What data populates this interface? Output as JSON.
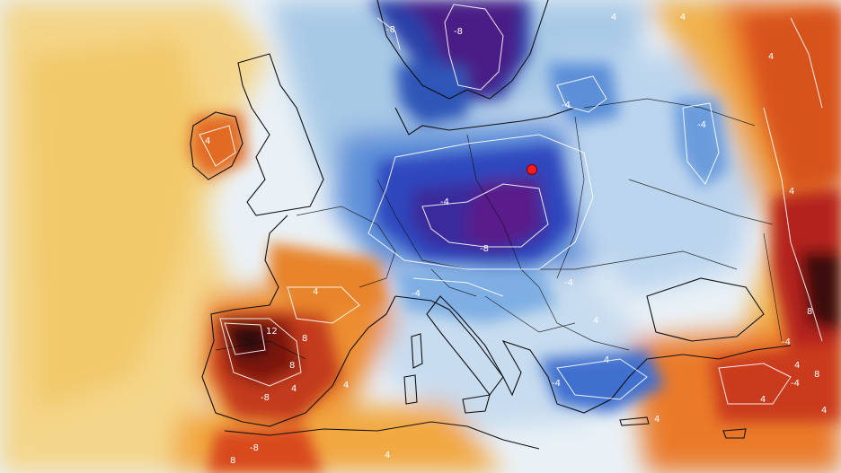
{
  "map": {
    "type": "temperature-anomaly-map",
    "region": "Europe",
    "has_legend": false,
    "has_title": false,
    "palette": {
      "deep_cold": "#4a1780",
      "cold": "#2f4fc4",
      "cool": "#6fa3db",
      "light_cool": "#bcd8ee",
      "neutral": "#f2f2ee",
      "warm_pale": "#f4dc9a",
      "warm": "#f0bf4e",
      "orange": "#e8862a",
      "hot": "#c9341a",
      "very_hot": "#7a1010",
      "extreme": "#2e0606",
      "contour": "#ffffff",
      "coastline": "#111111",
      "marker": "#ff1a1a"
    },
    "contour_labels": [
      "-8",
      "-8",
      "4",
      "-4",
      "4",
      "4",
      "-4",
      "4",
      "-8",
      "4",
      "-4",
      "4",
      "-4",
      "4",
      "12",
      "8",
      "8",
      "4",
      "-8",
      "4",
      "-4",
      "8",
      "4",
      "-4",
      "-8",
      "4",
      "8",
      "4",
      "4",
      "8",
      "-4",
      "-4",
      "4",
      "4"
    ],
    "marker": {
      "name": "location-marker",
      "color": "#ff1a1a"
    }
  }
}
